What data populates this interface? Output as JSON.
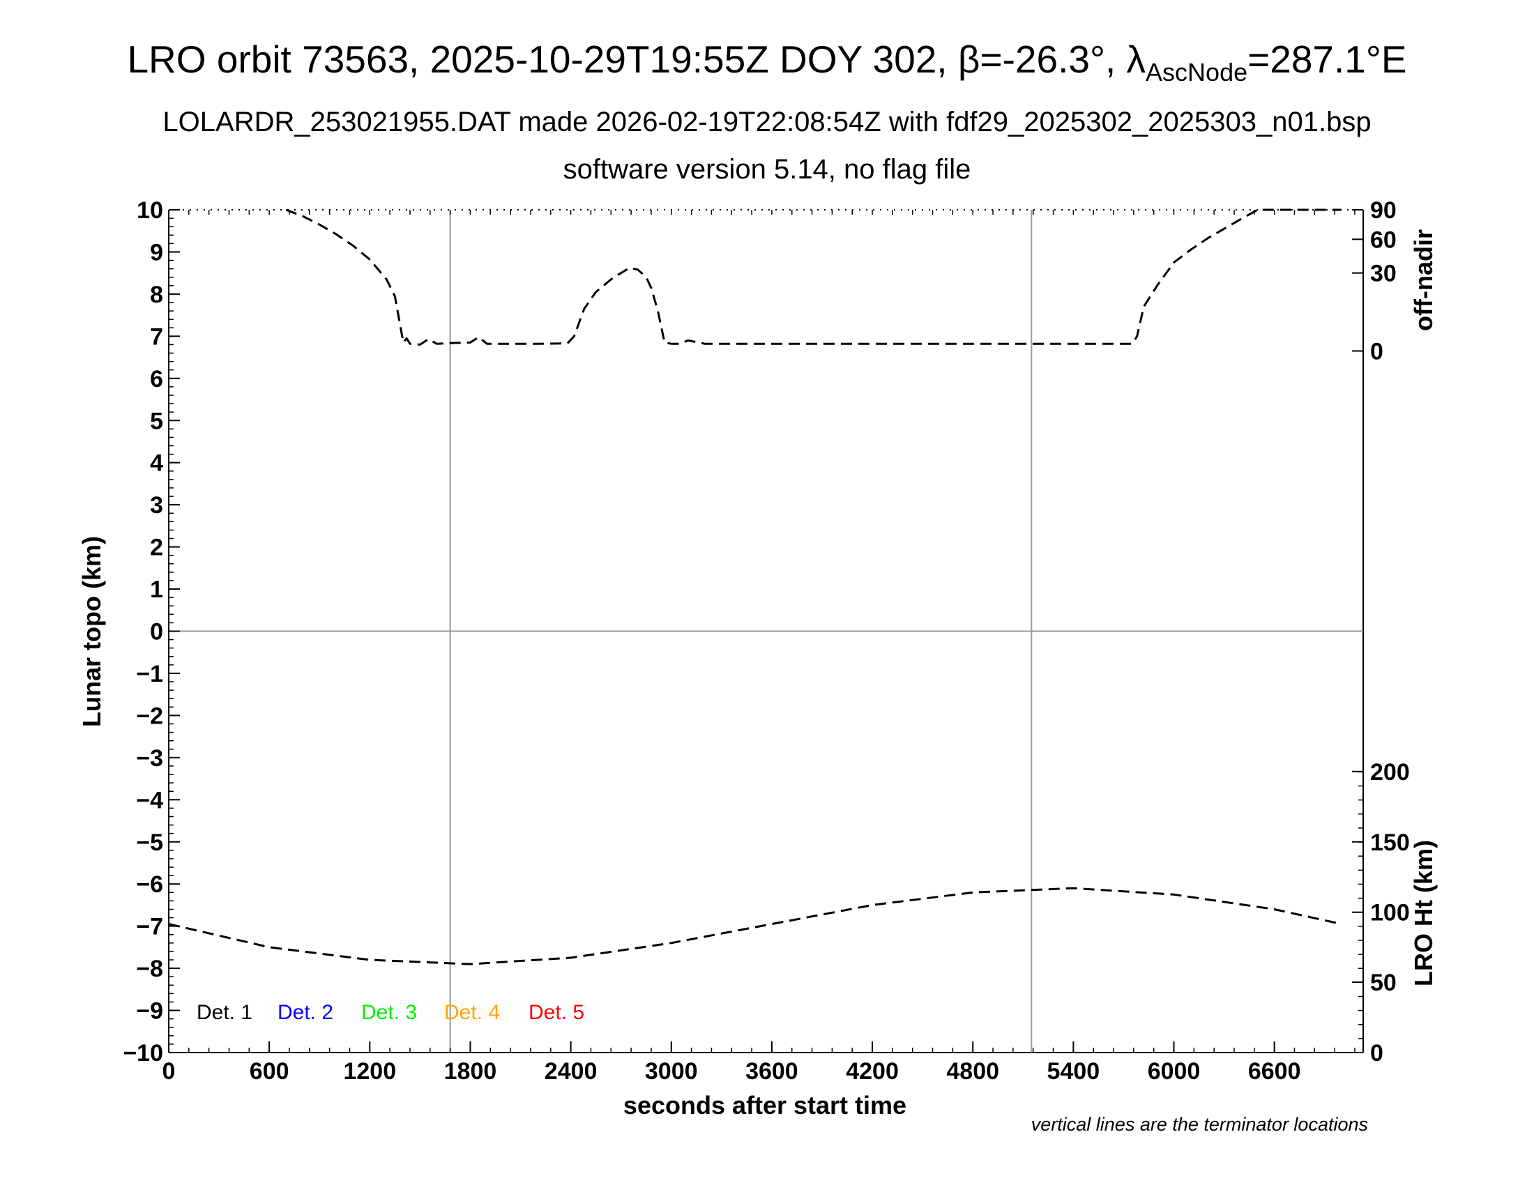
{
  "chart_data": {
    "type": "line",
    "title": {
      "prefix": "LRO orbit 73563, 2025-10-29T19:55Z DOY 302, ",
      "beta_symbol": "β",
      "beta_value": "=-26.3°, ",
      "lambda_symbol": "λ",
      "lambda_sub": "AscNode",
      "lambda_value": "=287.1°E"
    },
    "subtitle1": "LOLARDR_253021955.DAT made 2026-02-19T22:08:54Z with fdf29_2025302_2025303_n01.bsp",
    "subtitle2": "software version 5.14, no flag file",
    "xlabel": "seconds after start time",
    "ylabel_left": "Lunar topo (km)",
    "ylabel_right_top": "off-nadir",
    "ylabel_right_bottom": "LRO Ht (km)",
    "note": "vertical lines are the terminator locations",
    "xlim": [
      0,
      7130
    ],
    "ylim": [
      -10,
      10
    ],
    "x_ticks": [
      0,
      600,
      1200,
      1800,
      2400,
      3000,
      3600,
      4200,
      4800,
      5400,
      6000,
      6600
    ],
    "y_ticks": [
      10,
      9,
      8,
      7,
      6,
      5,
      4,
      3,
      2,
      1,
      0,
      -1,
      -2,
      -3,
      -4,
      -5,
      -6,
      -7,
      -8,
      -9,
      -10
    ],
    "y_tick_labels": [
      "10",
      "9",
      "8",
      "7",
      "6",
      "5",
      "4",
      "3",
      "2",
      "1",
      "0",
      "−1",
      "−2",
      "−3",
      "−4",
      "−5",
      "−6",
      "−7",
      "−8",
      "−9",
      "−10"
    ],
    "off_nadir_ticks": [
      {
        "label": "90",
        "topo": 10.0
      },
      {
        "label": "60",
        "topo": 9.3
      },
      {
        "label": "30",
        "topo": 8.5
      },
      {
        "label": "0",
        "topo": 6.65
      }
    ],
    "lro_ht_ticks": [
      {
        "label": "200",
        "topo": -3.33
      },
      {
        "label": "150",
        "topo": -5.0
      },
      {
        "label": "100",
        "topo": -6.67
      },
      {
        "label": "50",
        "topo": -8.33
      },
      {
        "label": "0",
        "topo": -10.0
      }
    ],
    "terminators": [
      1680,
      5150
    ],
    "zero_line": 0,
    "legend": [
      {
        "label": "Det. 1",
        "color": "#000000"
      },
      {
        "label": "Det. 2",
        "color": "#0000ff"
      },
      {
        "label": "Det. 3",
        "color": "#00ee00"
      },
      {
        "label": "Det. 4",
        "color": "#ffa500"
      },
      {
        "label": "Det. 5",
        "color": "#ff0000"
      }
    ],
    "legend_position": "bottom-left",
    "series": [
      {
        "type": "dashed",
        "x": [
          700,
          800,
          900,
          1000,
          1100,
          1200,
          1300,
          1350,
          1380,
          1400,
          1420,
          1440,
          1500,
          1550,
          1600,
          1700,
          1800,
          1850,
          1900,
          2000,
          2200,
          2380,
          2420,
          2480,
          2550,
          2650,
          2750,
          2800,
          2850,
          2880,
          2920,
          2960,
          3000,
          3050,
          3100,
          3200,
          3600,
          4200,
          4800,
          5400,
          5750,
          5780,
          5820,
          5900,
          6000,
          6100,
          6200,
          6300,
          6400,
          6500,
          7000
        ],
        "y": [
          10.0,
          9.85,
          9.65,
          9.42,
          9.15,
          8.82,
          8.35,
          7.95,
          7.3,
          6.85,
          6.95,
          6.82,
          6.8,
          6.93,
          6.82,
          6.84,
          6.85,
          6.98,
          6.82,
          6.82,
          6.82,
          6.83,
          7.0,
          7.65,
          8.05,
          8.38,
          8.62,
          8.58,
          8.4,
          8.15,
          7.6,
          6.85,
          6.82,
          6.82,
          6.9,
          6.82,
          6.82,
          6.82,
          6.82,
          6.82,
          6.82,
          7.0,
          7.7,
          8.2,
          8.75,
          9.05,
          9.32,
          9.55,
          9.78,
          10.0,
          10.0
        ]
      },
      {
        "type": "dashed",
        "x": [
          0,
          600,
          1200,
          1800,
          2400,
          3000,
          3600,
          4200,
          4800,
          5400,
          6000,
          6600,
          7000
        ],
        "y": [
          -6.95,
          -7.5,
          -7.8,
          -7.9,
          -7.75,
          -7.4,
          -6.95,
          -6.5,
          -6.2,
          -6.1,
          -6.25,
          -6.6,
          -6.95
        ]
      }
    ]
  }
}
